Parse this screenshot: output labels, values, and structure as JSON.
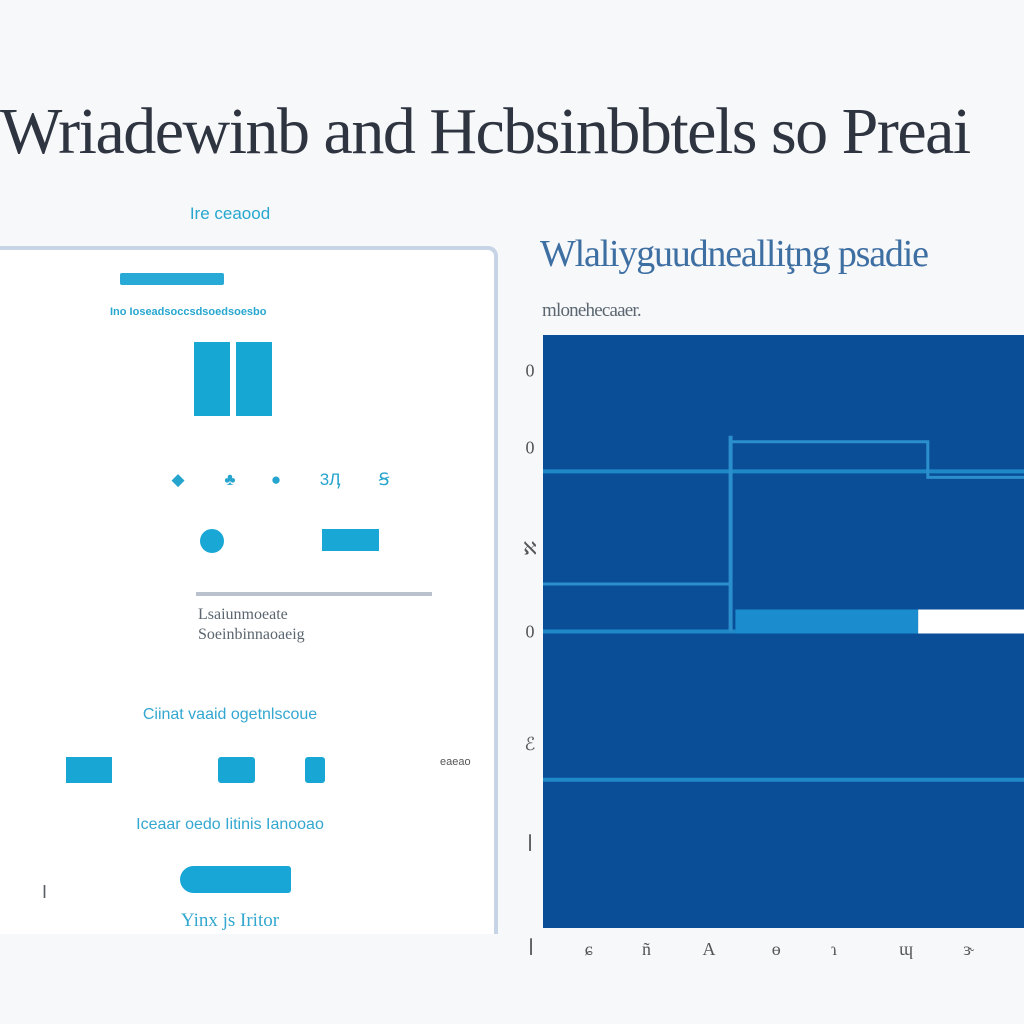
{
  "page": {
    "title": "Wriadewinb and Hcbsinbbtels so Preai"
  },
  "left_panel": {
    "caption": "Ire ceaood",
    "subtitle": "Ino Ioseadsoccsdsoedsoesbo",
    "icons": [
      "drop-icon",
      "cluster-icon",
      "dot-icon",
      "number-icon",
      "s-icon"
    ],
    "icon_glyphs": [
      "◆",
      "♣",
      "●",
      "3Ӆ",
      "Ꞩ"
    ],
    "text_line_1": "Lsaiunmoeate",
    "text_line_2": "Soeinbinnaoaeig",
    "section_label_1": "Ciinat vaaid ogetnlscoue",
    "section_label_2": "Iceaar oedo Iitinis Ianooao",
    "button_label": "",
    "footer_label": "Yinx js Iritor",
    "side_mark": "I",
    "small_label": "eaeao"
  },
  "chart_panel": {
    "title": "Wlaliyguudnealliţng psadie",
    "subtitle": "mlonehecaaer."
  },
  "colors": {
    "accent": "#19a7d6",
    "chart_bg": "#0b4e98",
    "chart_line": "#1f88c7",
    "title": "#2e3440",
    "chart_title": "#3e6fa3"
  },
  "chart_data": {
    "type": "area",
    "title": "Wlaliyguudnealliţng psadie",
    "subtitle": "mlonehecaaer.",
    "y_tick_labels": [
      "0",
      "0",
      "ℵ",
      "0",
      "ℰ",
      "ꟾ"
    ],
    "x_tick_labels": [
      "ꟾ",
      "ɕ",
      "ñ",
      "A",
      "ɵ",
      "ɿ",
      "ɰ",
      "ɝ"
    ],
    "grid": true,
    "series": [
      {
        "x": [
          0,
          0.39,
          0.39,
          0.8,
          0.8,
          1.0
        ],
        "values": [
          0.58,
          0.58,
          0.82,
          0.82,
          0.76,
          0.76
        ]
      }
    ],
    "ylim": [
      0,
      1
    ],
    "xlim": [
      0,
      1
    ]
  }
}
